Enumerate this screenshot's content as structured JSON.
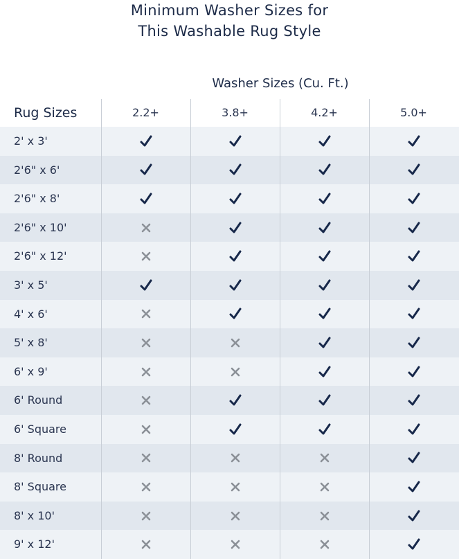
{
  "title": [
    "Minimum Washer Sizes for",
    "This Washable Rug Style"
  ],
  "colors": {
    "check": "#17284a",
    "cross": "#8b9097",
    "text": "#1d2b48",
    "row_light": "#eef2f6",
    "row_dark": "#e1e7ee"
  },
  "chart_data": {
    "type": "table",
    "column_group_label": "Washer Sizes (Cu. Ft.)",
    "row_header": "Rug Sizes",
    "columns": [
      "2.2+",
      "3.8+",
      "4.2+",
      "5.0+"
    ],
    "rows": [
      {
        "label": "2' x 3'",
        "fits": [
          true,
          true,
          true,
          true
        ]
      },
      {
        "label": "2'6\" x 6'",
        "fits": [
          true,
          true,
          true,
          true
        ]
      },
      {
        "label": "2'6\" x 8'",
        "fits": [
          true,
          true,
          true,
          true
        ]
      },
      {
        "label": "2'6\" x 10'",
        "fits": [
          false,
          true,
          true,
          true
        ]
      },
      {
        "label": "2'6\" x 12'",
        "fits": [
          false,
          true,
          true,
          true
        ]
      },
      {
        "label": "3' x 5'",
        "fits": [
          true,
          true,
          true,
          true
        ]
      },
      {
        "label": "4' x 6'",
        "fits": [
          false,
          true,
          true,
          true
        ]
      },
      {
        "label": "5' x 8'",
        "fits": [
          false,
          false,
          true,
          true
        ]
      },
      {
        "label": "6' x 9'",
        "fits": [
          false,
          false,
          true,
          true
        ]
      },
      {
        "label": "6' Round",
        "fits": [
          false,
          true,
          true,
          true
        ]
      },
      {
        "label": "6' Square",
        "fits": [
          false,
          true,
          true,
          true
        ]
      },
      {
        "label": "8' Round",
        "fits": [
          false,
          false,
          false,
          true
        ]
      },
      {
        "label": "8' Square",
        "fits": [
          false,
          false,
          false,
          true
        ]
      },
      {
        "label": "8' x 10'",
        "fits": [
          false,
          false,
          false,
          true
        ]
      },
      {
        "label": "9' x 12'",
        "fits": [
          false,
          false,
          false,
          true
        ]
      }
    ],
    "icons": {
      "true": "checkmark-icon",
      "false": "cross-icon"
    }
  }
}
